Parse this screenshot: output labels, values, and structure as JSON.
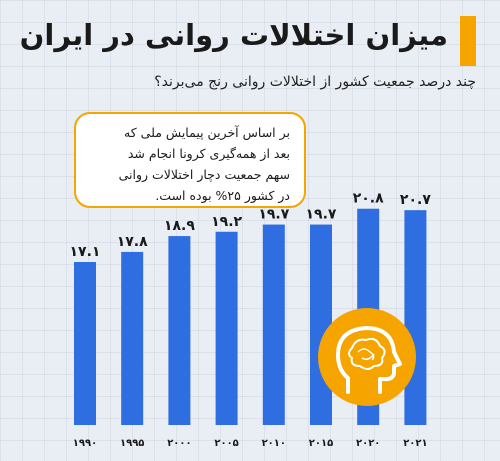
{
  "title": "میزان اختلالات روانی در ایران",
  "subtitle": "چند درصد جمعیت کشور از اختلالات روانی رنج می‌برند؟",
  "note": "بر اساس آخرین پیمایش ملی که\nبعد از همه‌گیری کرونا انجام شد\nسهم جمعیت دچار اختلالات روانی\nدر کشور ۲۵% بوده است.",
  "colors": {
    "bar": "#2f6ee0",
    "accent": "#f6a400",
    "text": "#1a1a1a"
  },
  "icon": "brain-head-icon",
  "chart_data": {
    "type": "bar",
    "categories": [
      "۱۹۹۰",
      "۱۹۹۵",
      "۲۰۰۰",
      "۲۰۰۵",
      "۲۰۱۰",
      "۲۰۱۵",
      "۲۰۲۰",
      "۲۰۲۱"
    ],
    "values": [
      17.1,
      17.8,
      18.9,
      19.2,
      19.7,
      19.7,
      20.8,
      20.7
    ],
    "value_labels": [
      "۱۷.۱",
      "۱۷.۸",
      "۱۸.۹",
      "۱۹.۲",
      "۱۹.۷",
      "۱۹.۷",
      "۲۰.۸",
      "۲۰.۷"
    ],
    "grid": false
  }
}
